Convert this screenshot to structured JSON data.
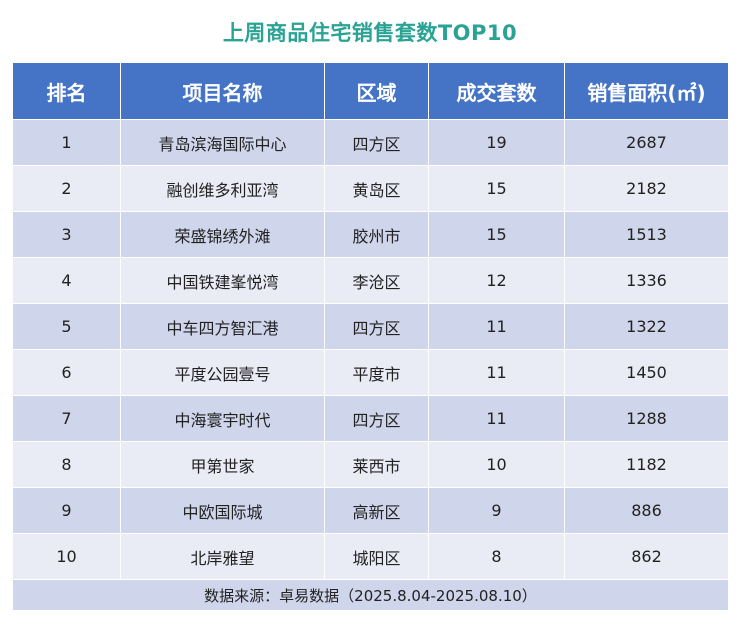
{
  "title": "上周商品住宅销售套数TOP10",
  "colors": {
    "title": "#2aa394",
    "header_bg": "#4574c6",
    "row_odd": "#cfd5ea",
    "row_even": "#e9ebf5"
  },
  "table": {
    "headers": [
      "排名",
      "项目名称",
      "区域",
      "成交套数",
      "销售面积(㎡)"
    ],
    "rows": [
      [
        "1",
        "青岛滨海国际中心",
        "四方区",
        "19",
        "2687"
      ],
      [
        "2",
        "融创维多利亚湾",
        "黄岛区",
        "15",
        "2182"
      ],
      [
        "3",
        "荣盛锦绣外滩",
        "胶州市",
        "15",
        "1513"
      ],
      [
        "4",
        "中国铁建峯悦湾",
        "李沧区",
        "12",
        "1336"
      ],
      [
        "5",
        "中车四方智汇港",
        "四方区",
        "11",
        "1322"
      ],
      [
        "6",
        "平度公园壹号",
        "平度市",
        "11",
        "1450"
      ],
      [
        "7",
        "中海寰宇时代",
        "四方区",
        "11",
        "1288"
      ],
      [
        "8",
        "甲第世家",
        "莱西市",
        "10",
        "1182"
      ],
      [
        "9",
        "中欧国际城",
        "高新区",
        "9",
        "886"
      ],
      [
        "10",
        "北岸雅望",
        "城阳区",
        "8",
        "862"
      ]
    ],
    "footer": "数据来源：卓易数据（2025.8.04-2025.08.10）"
  }
}
